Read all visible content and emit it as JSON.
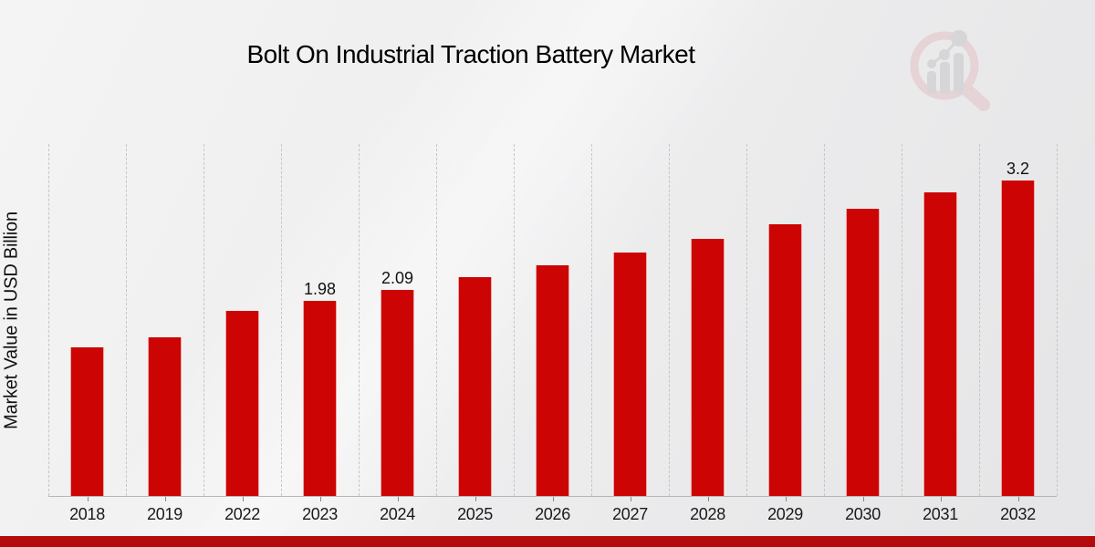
{
  "page": {
    "title": "Bolt On Industrial Traction Battery Market"
  },
  "chart_data": {
    "type": "bar",
    "title": "Bolt On Industrial Traction Battery Market",
    "xlabel": "",
    "ylabel": "Market Value in USD Billion",
    "categories": [
      "2018",
      "2019",
      "2022",
      "2023",
      "2024",
      "2025",
      "2026",
      "2027",
      "2028",
      "2029",
      "2030",
      "2031",
      "2032"
    ],
    "values": [
      1.51,
      1.61,
      1.88,
      1.98,
      2.09,
      2.22,
      2.34,
      2.47,
      2.61,
      2.76,
      2.91,
      3.08,
      3.2
    ],
    "bar_labels": [
      "",
      "",
      "",
      "1.98",
      "2.09",
      "",
      "",
      "",
      "",
      "",
      "",
      "",
      "3.2"
    ],
    "ylim": [
      0,
      3.57
    ],
    "grid": "vertical-dashed-between-categories",
    "legend": "none",
    "bar_color": "#cc0404",
    "grid_color": "#c6c6c6",
    "axis_color": "#b5b5b5",
    "tick_color": "#888888",
    "label_color": "#111111"
  },
  "branding": {
    "watermark_icon": "magnifier-bar-chart",
    "ring_color": "#e2c2c6",
    "glyph_color": "#c7c7cb"
  },
  "footer": {
    "stripe_color": "#b30b0b"
  }
}
